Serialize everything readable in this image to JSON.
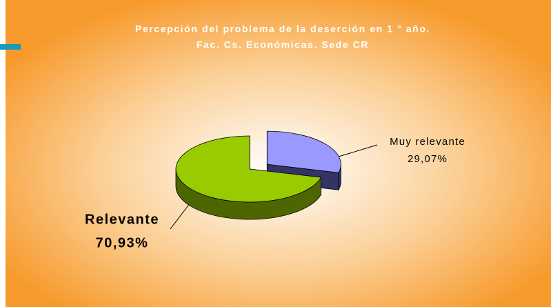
{
  "chart_data": {
    "type": "pie",
    "title": [
      "Percepción del problema de la deserción en 1 ° año.",
      "Fac.  Cs. Económicas. Sede CR"
    ],
    "categories": [
      "Muy relevante",
      "Relevante"
    ],
    "values": [
      29.07,
      70.93
    ],
    "value_labels": [
      "29,07%",
      "70,93%"
    ],
    "colors": [
      "#9999ff",
      "#99cc00"
    ],
    "side_colors": [
      "#333366",
      "#4d6600"
    ]
  }
}
